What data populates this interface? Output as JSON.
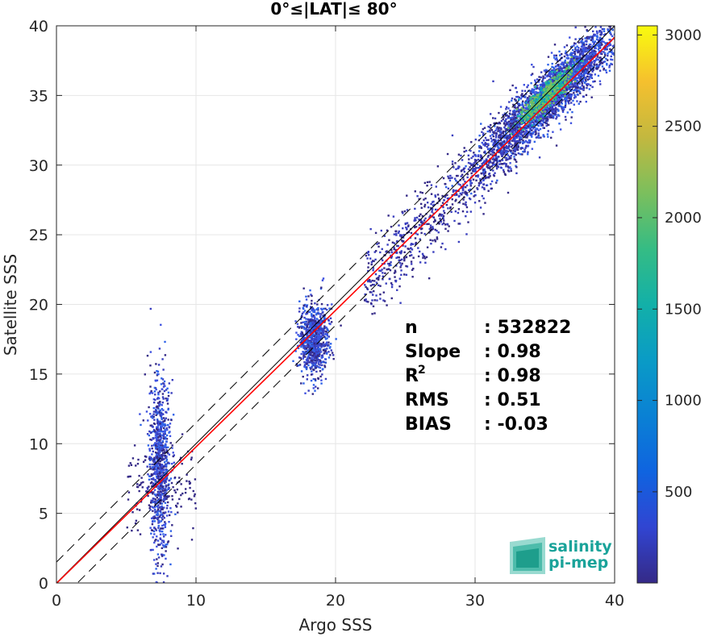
{
  "chart_data": {
    "type": "heatmap",
    "title": "0°≤|LAT|≤ 80°",
    "xlabel": "Argo SSS",
    "ylabel": "Satellite SSS",
    "xlim": [
      0,
      40
    ],
    "ylim": [
      0,
      40
    ],
    "xticks": [
      "0",
      "10",
      "20",
      "30",
      "40"
    ],
    "yticks": [
      "0",
      "5",
      "10",
      "15",
      "20",
      "25",
      "30",
      "35",
      "40"
    ],
    "grid": true,
    "colorbar": {
      "range": [
        1,
        3050
      ],
      "ticks": [
        "500",
        "1000",
        "1500",
        "2000",
        "2500",
        "3000"
      ],
      "colormap": "parula"
    },
    "clusters": [
      {
        "x_center": 7.3,
        "y_center": 8.5,
        "x_spread": 0.4,
        "y_spread": 3.2,
        "intensity": "low"
      },
      {
        "x_center": 18.4,
        "y_center": 17.5,
        "x_spread": 0.5,
        "y_spread": 1.3,
        "intensity": "low"
      },
      {
        "x_center": 35.5,
        "y_center": 35.2,
        "x_spread": 2.5,
        "y_spread": 2.5,
        "intensity": "high"
      }
    ],
    "lines": {
      "identity": {
        "slope": 1.0,
        "intercept": 0.0,
        "color": "#000000",
        "style": "solid"
      },
      "fit": {
        "slope": 0.98,
        "intercept": -0.03,
        "color": "#ff0000",
        "style": "solid"
      },
      "upper_bound": {
        "slope": 1.0,
        "intercept": 1.5,
        "color": "#000000",
        "style": "dashed"
      },
      "lower_bound": {
        "slope": 1.0,
        "intercept": -1.5,
        "color": "#000000",
        "style": "dashed"
      }
    },
    "stats": [
      {
        "label": "n",
        "value": ": 532822"
      },
      {
        "label": "Slope",
        "value": ": 0.98"
      },
      {
        "label": "R",
        "sup": "2",
        "value": ": 0.98"
      },
      {
        "label": "RMS",
        "value": ": 0.51"
      },
      {
        "label": "BIAS",
        "value": ": -0.03"
      }
    ]
  },
  "logo": {
    "line1": "salinity",
    "line2": "pi-mep",
    "color": "#1aa39a"
  }
}
